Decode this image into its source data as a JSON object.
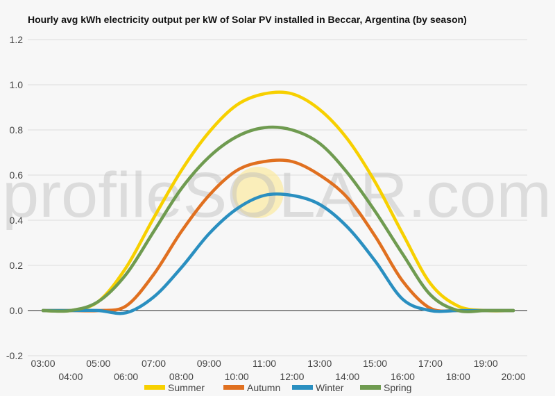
{
  "chart_data": {
    "type": "line",
    "title": "Hourly avg kWh electricity output per kW of Solar PV installed in Beccar, Argentina (by season)",
    "x": [
      "03:00",
      "04:00",
      "05:00",
      "06:00",
      "07:00",
      "08:00",
      "09:00",
      "10:00",
      "11:00",
      "12:00",
      "13:00",
      "14:00",
      "15:00",
      "16:00",
      "17:00",
      "18:00",
      "19:00",
      "20:00"
    ],
    "ylim": [
      -0.2,
      1.2
    ],
    "yticks": [
      -0.2,
      0.0,
      0.2,
      0.4,
      0.6,
      0.8,
      1.0,
      1.2
    ],
    "grid": true,
    "legend_position": "bottom",
    "series": [
      {
        "name": "Summer",
        "color": "#f7d000",
        "values": [
          0.0,
          0.0,
          0.04,
          0.19,
          0.41,
          0.62,
          0.79,
          0.91,
          0.96,
          0.96,
          0.89,
          0.76,
          0.57,
          0.34,
          0.12,
          0.02,
          0.0,
          0.0
        ]
      },
      {
        "name": "Autumn",
        "color": "#e07020",
        "values": [
          0.0,
          0.0,
          0.0,
          0.02,
          0.16,
          0.35,
          0.51,
          0.62,
          0.66,
          0.66,
          0.6,
          0.5,
          0.33,
          0.13,
          0.01,
          0.0,
          0.0,
          0.0
        ]
      },
      {
        "name": "Winter",
        "color": "#2a8fc0",
        "values": [
          0.0,
          0.0,
          0.0,
          -0.01,
          0.06,
          0.19,
          0.34,
          0.45,
          0.51,
          0.51,
          0.47,
          0.37,
          0.22,
          0.05,
          0.0,
          0.0,
          0.0,
          0.0
        ]
      },
      {
        "name": "Spring",
        "color": "#6f9b50",
        "values": [
          0.0,
          0.0,
          0.04,
          0.16,
          0.35,
          0.54,
          0.68,
          0.77,
          0.81,
          0.8,
          0.74,
          0.61,
          0.44,
          0.25,
          0.07,
          0.0,
          0.0,
          0.0
        ]
      }
    ],
    "watermark": "profileSOLAR.com"
  }
}
